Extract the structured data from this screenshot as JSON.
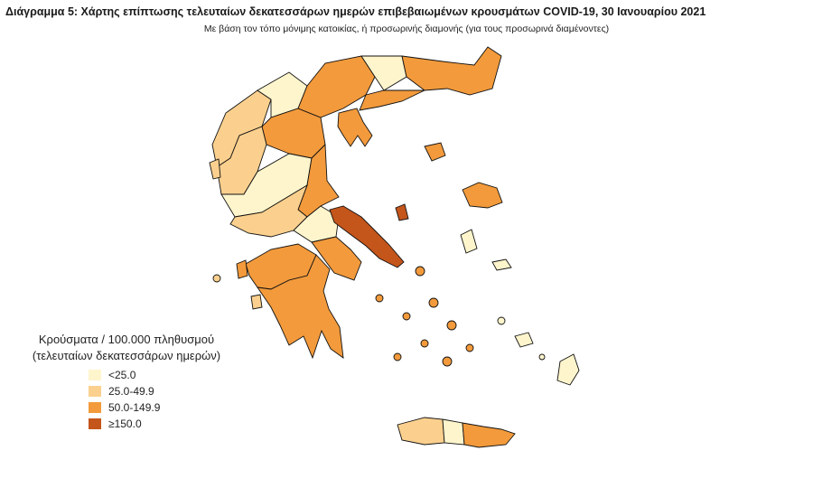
{
  "header": {
    "title": "Διάγραμμα 5: Χάρτης επίπτωσης τελευταίων δεκατεσσάρων ημερών επιβεβαιωμένων κρουσμάτων COVID-19, 30 Ιανουαρίου 2021",
    "subtitle": "Με βάση τον τόπο μόνιμης κατοικίας, ή προσωρινής διαμονής (για τους προσωρινά διαμένοντες)"
  },
  "legend": {
    "title": [
      "Κρούσματα / 100.000 πληθυσμού",
      "(τελευταίων δεκατεσσάρων ημερών)"
    ],
    "items": [
      {
        "label": "<25.0",
        "color": "#fff5cc"
      },
      {
        "label": "25.0-49.9",
        "color": "#fbd08e"
      },
      {
        "label": "50.0-149.9",
        "color": "#f29a3c"
      },
      {
        "label": "≥150.0",
        "color": "#c4551b"
      }
    ]
  }
}
